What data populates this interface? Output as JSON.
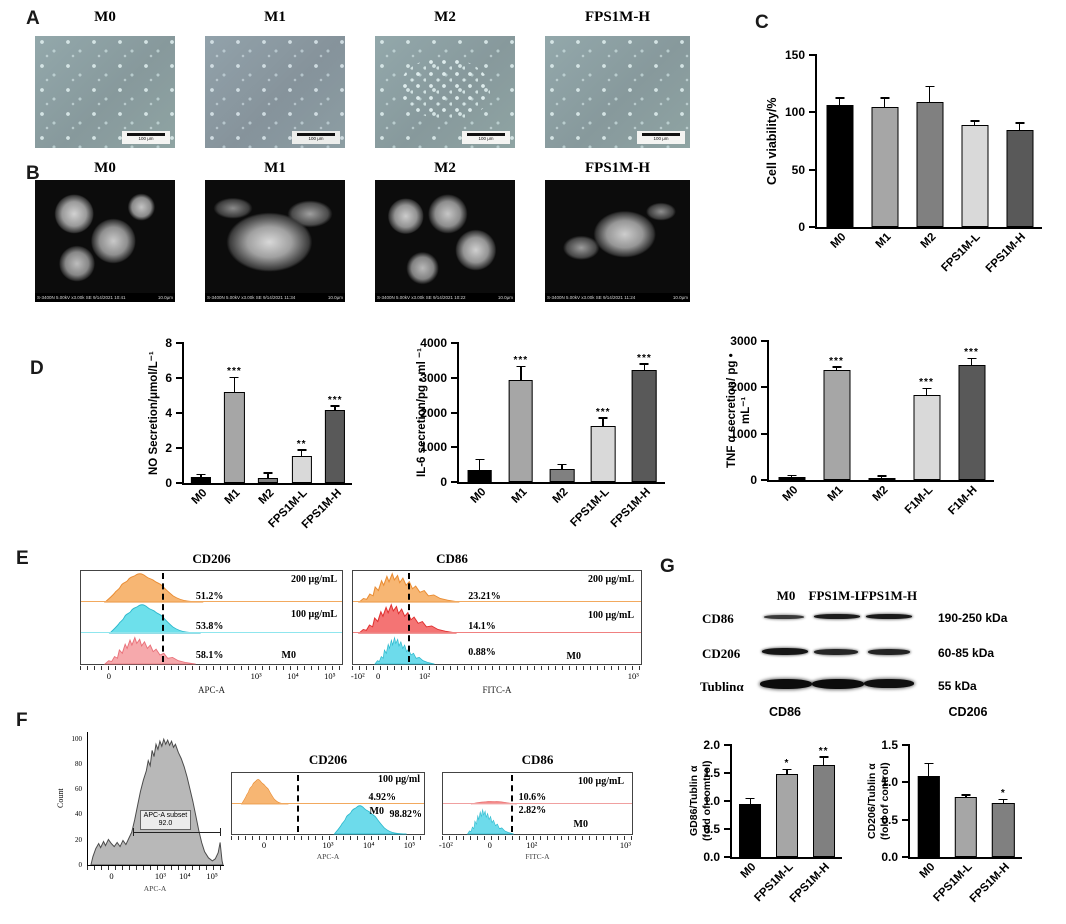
{
  "figure": {
    "panels": {
      "a": "A",
      "b": "B",
      "c": "C",
      "d": "D",
      "e": "E",
      "f": "F",
      "g": "G"
    }
  },
  "panel_a": {
    "headers": [
      "M0",
      "M1",
      "M2",
      "FPS1M-H"
    ],
    "scalebar": "100 μm"
  },
  "panel_b": {
    "headers": [
      "M0",
      "M1",
      "M2",
      "FPS1M-H"
    ],
    "meta": [
      "S-3400N 5.00kV x3.00k SE 9/14/2021 10:41",
      "S-3400N 5.00kV x3.00k SE 9/14/2021 11:34",
      "S-3400N 5.00kV x3.00k SE 9/14/2021 10:22",
      "S-3400N 5.00kV x3.00k SE 9/14/2021 11:24"
    ],
    "scale": "10.0μm"
  },
  "chart_data": {
    "cell_viability": {
      "type": "bar",
      "title": "",
      "ylabel": "Cell viability/%",
      "ylim": [
        0,
        150
      ],
      "yticks": [
        "0",
        "50",
        "100",
        "150"
      ],
      "categories": [
        "M0",
        "M1",
        "M2",
        "FPS1M-L",
        "FPS1M-H"
      ],
      "values": [
        106,
        105,
        109,
        89,
        85
      ],
      "errors": [
        6,
        7,
        13,
        3,
        5
      ],
      "sig": [
        "",
        "",
        "",
        "",
        ""
      ],
      "colors": [
        "#000000",
        "#a6a6a6",
        "#808080",
        "#d9d9d9",
        "#595959"
      ]
    },
    "no_secretion": {
      "type": "bar",
      "title": "",
      "ylabel": "NO Secretion/μmol/L⁻¹",
      "ylim": [
        0,
        8
      ],
      "yticks": [
        "0",
        "2",
        "4",
        "6",
        "8"
      ],
      "categories": [
        "M0",
        "M1",
        "M2",
        "FPS1M-L",
        "FPS1M-H"
      ],
      "values": [
        0.32,
        5.2,
        0.27,
        1.55,
        4.15
      ],
      "errors": [
        0.12,
        0.8,
        0.25,
        0.3,
        0.2
      ],
      "sig": [
        "",
        "***",
        "",
        "**",
        "***"
      ],
      "colors": [
        "#000000",
        "#a6a6a6",
        "#808080",
        "#d9d9d9",
        "#595959"
      ]
    },
    "il6_secretion": {
      "type": "bar",
      "title": "",
      "ylabel": "IL-6 secretion/pg • ml ⁻¹",
      "ylim": [
        0,
        4000
      ],
      "yticks": [
        "0",
        "1000",
        "2000",
        "3000",
        "4000"
      ],
      "categories": [
        "M0",
        "M1",
        "M2",
        "FPS1M-L",
        "FPS1M-H"
      ],
      "values": [
        350,
        2950,
        380,
        1620,
        3230
      ],
      "errors": [
        280,
        350,
        100,
        200,
        150
      ],
      "sig": [
        "",
        "***",
        "",
        "***",
        "***"
      ],
      "colors": [
        "#000000",
        "#a6a6a6",
        "#808080",
        "#d9d9d9",
        "#595959"
      ]
    },
    "tnf_secretion": {
      "type": "bar",
      "title": "",
      "ylabel": "TNF α secretion/ pg • mL⁻¹",
      "ylim": [
        0,
        3000
      ],
      "yticks": [
        "0",
        "1000",
        "2000",
        "3000"
      ],
      "categories": [
        "M0",
        "M1",
        "M2",
        "F1M-L",
        "F1M-H"
      ],
      "values": [
        60,
        2380,
        50,
        1840,
        2480
      ],
      "errors": [
        20,
        40,
        20,
        120,
        130
      ],
      "sig": [
        "",
        "***",
        "",
        "***",
        "***"
      ],
      "colors": [
        "#000000",
        "#a6a6a6",
        "#808080",
        "#d9d9d9",
        "#595959"
      ]
    },
    "cd86_fold": {
      "type": "bar",
      "title": "CD86",
      "ylabel": "GD86/Tublin α\n(fold of comtrol)",
      "ylim": [
        0,
        2.0
      ],
      "yticks": [
        "0.0",
        "0.5",
        "1.0",
        "1.5",
        "2.0"
      ],
      "categories": [
        "M0",
        "FPS1M-L",
        "FPS1M-H"
      ],
      "values": [
        0.95,
        1.48,
        1.65
      ],
      "errors": [
        0.08,
        0.07,
        0.12
      ],
      "sig": [
        "",
        "*",
        "**"
      ],
      "colors": [
        "#000000",
        "#a6a6a6",
        "#808080"
      ]
    },
    "cd206_fold": {
      "type": "bar",
      "title": "CD206",
      "ylabel": "CD206/Tublin α\n(fold of control)",
      "ylim": [
        0,
        1.5
      ],
      "yticks": [
        "0.0",
        "0.5",
        "1.0",
        "1.5"
      ],
      "categories": [
        "M0",
        "FPS1M-L",
        "FPS1M-H"
      ],
      "values": [
        1.08,
        0.8,
        0.73
      ],
      "errors": [
        0.16,
        0.02,
        0.03
      ],
      "sig": [
        "",
        "",
        "*"
      ],
      "colors": [
        "#000000",
        "#a6a6a6",
        "#808080"
      ]
    },
    "flow_e_cd206": {
      "type": "histogram",
      "title": "CD206",
      "xlabel": "APC-A",
      "xticks": [
        "0",
        "10³",
        "10⁴",
        "10⁵"
      ],
      "rows": [
        {
          "label": "200 μg/mL",
          "percent": "51.2%",
          "color": "#F6A95A"
        },
        {
          "label": "100 μg/mL",
          "percent": "53.8%",
          "color": "#53DBE8"
        },
        {
          "label": "M0",
          "percent": "58.1%",
          "color": "#F49A9E"
        }
      ]
    },
    "flow_e_cd86": {
      "type": "histogram",
      "title": "CD86",
      "xlabel": "FITC-A",
      "xticks": [
        "-10²",
        "0",
        "10²",
        "10³"
      ],
      "rows": [
        {
          "label": "200 μg/mL",
          "percent": "23.21%",
          "color": "#F6A95A"
        },
        {
          "label": "100 μg/mL",
          "percent": "14.1%",
          "color": "#F25C5C"
        },
        {
          "label": "M0",
          "percent": "0.88%",
          "color": "#53D5E8"
        }
      ]
    },
    "flow_f_count": {
      "type": "histogram",
      "ylabel": "Count",
      "xlabel": "APC-A",
      "yticks": [
        "0",
        "20",
        "40",
        "60",
        "80",
        "100"
      ],
      "xticks": [
        "0",
        "10³",
        "10⁴",
        "10⁵"
      ],
      "gate_label": "APC-A subset",
      "gate_value": "92.0"
    },
    "flow_f_cd206": {
      "type": "histogram",
      "title": "CD206",
      "xlabel": "APC-A",
      "xticks": [
        "0",
        "10³",
        "10⁴",
        "10⁵"
      ],
      "rows": [
        {
          "label": "100 μg/ml",
          "percent": "4.92%",
          "color": "#F6A95A"
        },
        {
          "label": "M0",
          "percent": "98.82%",
          "color": "#53D5E8"
        }
      ]
    },
    "flow_f_cd86": {
      "type": "histogram",
      "title": "CD86",
      "xlabel": "FITC-A",
      "xticks": [
        "-10²",
        "0",
        "10²",
        "10³"
      ],
      "rows": [
        {
          "label": "100 μg/mL",
          "percent": "10.6%",
          "color": "#F47C7C"
        },
        {
          "label": "M0",
          "percent": "2.82%",
          "color": "#53D5E8"
        }
      ]
    }
  },
  "panel_g": {
    "blot": {
      "lanes": [
        "M0",
        "FPS1M-L",
        "FPS1M-H"
      ],
      "rows": [
        {
          "protein": "CD86",
          "kda": "190-250 kDa"
        },
        {
          "protein": "CD206",
          "kda": "60-85 kDa"
        },
        {
          "protein": "Tublinα",
          "kda": "55 kDa"
        }
      ]
    }
  }
}
